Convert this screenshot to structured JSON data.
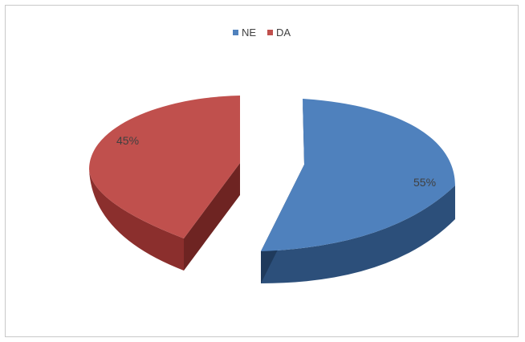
{
  "chart_data": {
    "type": "pie",
    "style": "3d-exploded",
    "categories": [
      "NE",
      "DA"
    ],
    "values": [
      55,
      45
    ],
    "value_labels": [
      "55%",
      "45%"
    ],
    "colors": {
      "NE": {
        "top": "#4f81bd",
        "side": "#2c4f7a",
        "side_dark": "#1f3a5c"
      },
      "DA": {
        "top": "#c0504d",
        "side": "#8b2f2d",
        "side_dark": "#6e2422"
      }
    },
    "legend": {
      "position": "top",
      "entries": [
        "NE",
        "DA"
      ]
    },
    "title": ""
  }
}
